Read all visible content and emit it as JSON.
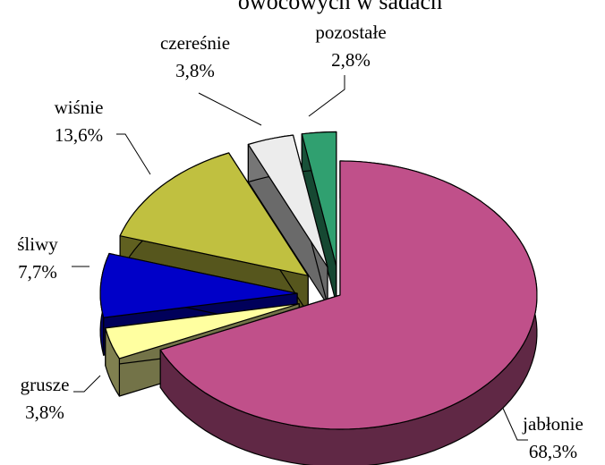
{
  "chart_data": {
    "type": "pie3d",
    "title": "owocowych w sadach",
    "categories": [
      "jabłonie",
      "grusze",
      "śliwy",
      "wiśnie",
      "czereśnie",
      "pozostałe"
    ],
    "values": [
      68.3,
      3.8,
      7.7,
      13.6,
      3.8,
      2.8
    ],
    "value_labels": [
      "68,3%",
      "3,8%",
      "7,7%",
      "13,6%",
      "3,8%",
      "2,8%"
    ],
    "colors": [
      "#c0508a",
      "#ffffa0",
      "#0000c8",
      "#c0c040",
      "#ececec",
      "#30a070"
    ]
  }
}
